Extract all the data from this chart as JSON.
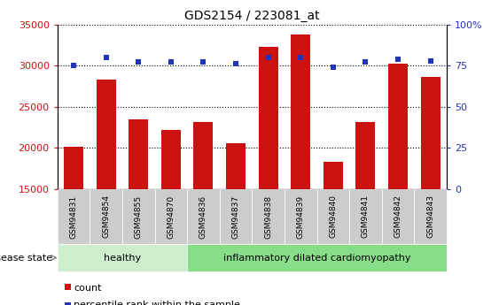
{
  "title": "GDS2154 / 223081_at",
  "samples": [
    "GSM94831",
    "GSM94854",
    "GSM94855",
    "GSM94870",
    "GSM94836",
    "GSM94837",
    "GSM94838",
    "GSM94839",
    "GSM94840",
    "GSM94841",
    "GSM94842",
    "GSM94843"
  ],
  "counts": [
    20100,
    28300,
    23500,
    22200,
    23200,
    20600,
    32300,
    33800,
    18300,
    23200,
    30200,
    28600
  ],
  "percentile_ranks": [
    75,
    80,
    77,
    77,
    77,
    76,
    80,
    80,
    74,
    77,
    79,
    78
  ],
  "bar_bottom": 15000,
  "ylim_left": [
    15000,
    35000
  ],
  "ylim_right": [
    0,
    100
  ],
  "yticks_left": [
    15000,
    20000,
    25000,
    30000,
    35000
  ],
  "yticks_right": [
    0,
    25,
    50,
    75,
    100
  ],
  "bar_color": "#CC1111",
  "percentile_color": "#2233BB",
  "healthy_group": [
    "GSM94831",
    "GSM94854",
    "GSM94855",
    "GSM94870"
  ],
  "idc_group": [
    "GSM94836",
    "GSM94837",
    "GSM94838",
    "GSM94839",
    "GSM94840",
    "GSM94841",
    "GSM94842",
    "GSM94843"
  ],
  "healthy_label": "healthy",
  "idc_label": "inflammatory dilated cardiomyopathy",
  "disease_state_label": "disease state",
  "legend_count_label": "count",
  "legend_percentile_label": "percentile rank within the sample",
  "healthy_color": "#CCEECC",
  "idc_color": "#88DD88",
  "tick_label_color_left": "#CC1111",
  "tick_label_color_right": "#2233BB",
  "background_color": "#FFFFFF",
  "percentile_marker_size": 5,
  "tick_box_color": "#CCCCCC"
}
